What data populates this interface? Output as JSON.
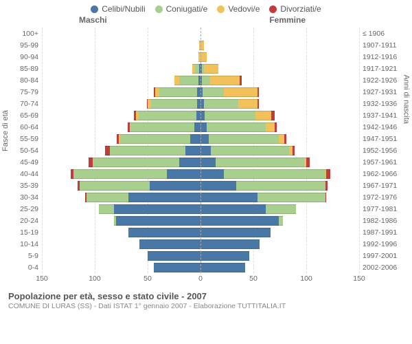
{
  "legend": [
    {
      "label": "Celibi/Nubili",
      "color": "#4a78a6"
    },
    {
      "label": "Coniugati/e",
      "color": "#a9cf8f"
    },
    {
      "label": "Vedovi/e",
      "color": "#f3c15b"
    },
    {
      "label": "Divorziati/e",
      "color": "#c13d3d"
    }
  ],
  "gender": {
    "m": "Maschi",
    "f": "Femmine"
  },
  "yaxis": {
    "left": "Fasce di età",
    "right": "Anni di nascita"
  },
  "xmax": 150,
  "xticks": [
    150,
    100,
    50,
    0,
    50,
    100,
    150
  ],
  "colors": {
    "celibi": "#4a78a6",
    "coniugati": "#a9cf8f",
    "vedovi": "#f3c15b",
    "divorziati": "#c13d3d",
    "bg": "#ffffff",
    "grid": "#dddddd",
    "center": "#aaaaaa"
  },
  "rows": [
    {
      "age": "100+",
      "birth": "≤ 1906",
      "m": [
        0,
        0,
        0,
        0
      ],
      "f": [
        0,
        0,
        0,
        0
      ]
    },
    {
      "age": "95-99",
      "birth": "1907-1911",
      "m": [
        0,
        0,
        1,
        0
      ],
      "f": [
        0,
        0,
        3,
        0
      ]
    },
    {
      "age": "90-94",
      "birth": "1912-1916",
      "m": [
        0,
        0,
        2,
        0
      ],
      "f": [
        0,
        0,
        6,
        0
      ]
    },
    {
      "age": "85-89",
      "birth": "1917-1921",
      "m": [
        1,
        4,
        3,
        0
      ],
      "f": [
        1,
        2,
        14,
        0
      ]
    },
    {
      "age": "80-84",
      "birth": "1922-1926",
      "m": [
        2,
        18,
        5,
        0
      ],
      "f": [
        1,
        8,
        28,
        2
      ]
    },
    {
      "age": "75-79",
      "birth": "1927-1931",
      "m": [
        3,
        36,
        4,
        1
      ],
      "f": [
        2,
        20,
        32,
        1
      ]
    },
    {
      "age": "70-74",
      "birth": "1932-1936",
      "m": [
        3,
        44,
        3,
        1
      ],
      "f": [
        3,
        33,
        18,
        1
      ]
    },
    {
      "age": "65-69",
      "birth": "1937-1941",
      "m": [
        4,
        55,
        2,
        2
      ],
      "f": [
        4,
        48,
        15,
        3
      ]
    },
    {
      "age": "60-64",
      "birth": "1942-1946",
      "m": [
        6,
        60,
        1,
        2
      ],
      "f": [
        6,
        56,
        8,
        2
      ]
    },
    {
      "age": "55-59",
      "birth": "1947-1951",
      "m": [
        10,
        66,
        1,
        2
      ],
      "f": [
        8,
        66,
        5,
        2
      ]
    },
    {
      "age": "50-54",
      "birth": "1952-1956",
      "m": [
        14,
        72,
        0,
        4
      ],
      "f": [
        10,
        74,
        3,
        2
      ]
    },
    {
      "age": "45-49",
      "birth": "1957-1961",
      "m": [
        20,
        82,
        0,
        4
      ],
      "f": [
        14,
        84,
        2,
        3
      ]
    },
    {
      "age": "40-44",
      "birth": "1962-1966",
      "m": [
        32,
        88,
        0,
        3
      ],
      "f": [
        22,
        96,
        1,
        4
      ]
    },
    {
      "age": "35-39",
      "birth": "1967-1971",
      "m": [
        48,
        66,
        0,
        2
      ],
      "f": [
        34,
        84,
        0,
        2
      ]
    },
    {
      "age": "30-34",
      "birth": "1972-1976",
      "m": [
        68,
        40,
        0,
        1
      ],
      "f": [
        54,
        64,
        0,
        1
      ]
    },
    {
      "age": "25-29",
      "birth": "1977-1981",
      "m": [
        82,
        14,
        0,
        0
      ],
      "f": [
        62,
        28,
        0,
        0
      ]
    },
    {
      "age": "20-24",
      "birth": "1982-1986",
      "m": [
        80,
        2,
        0,
        0
      ],
      "f": [
        74,
        4,
        0,
        0
      ]
    },
    {
      "age": "15-19",
      "birth": "1987-1991",
      "m": [
        68,
        0,
        0,
        0
      ],
      "f": [
        66,
        0,
        0,
        0
      ]
    },
    {
      "age": "10-14",
      "birth": "1992-1996",
      "m": [
        58,
        0,
        0,
        0
      ],
      "f": [
        56,
        0,
        0,
        0
      ]
    },
    {
      "age": "5-9",
      "birth": "1997-2001",
      "m": [
        50,
        0,
        0,
        0
      ],
      "f": [
        46,
        0,
        0,
        0
      ]
    },
    {
      "age": "0-4",
      "birth": "2002-2006",
      "m": [
        44,
        0,
        0,
        0
      ],
      "f": [
        42,
        0,
        0,
        0
      ]
    }
  ],
  "footer": {
    "title": "Popolazione per età, sesso e stato civile - 2007",
    "subtitle": "COMUNE DI LURAS (SS) - Dati ISTAT 1° gennaio 2007 - Elaborazione TUTTITALIA.IT"
  }
}
